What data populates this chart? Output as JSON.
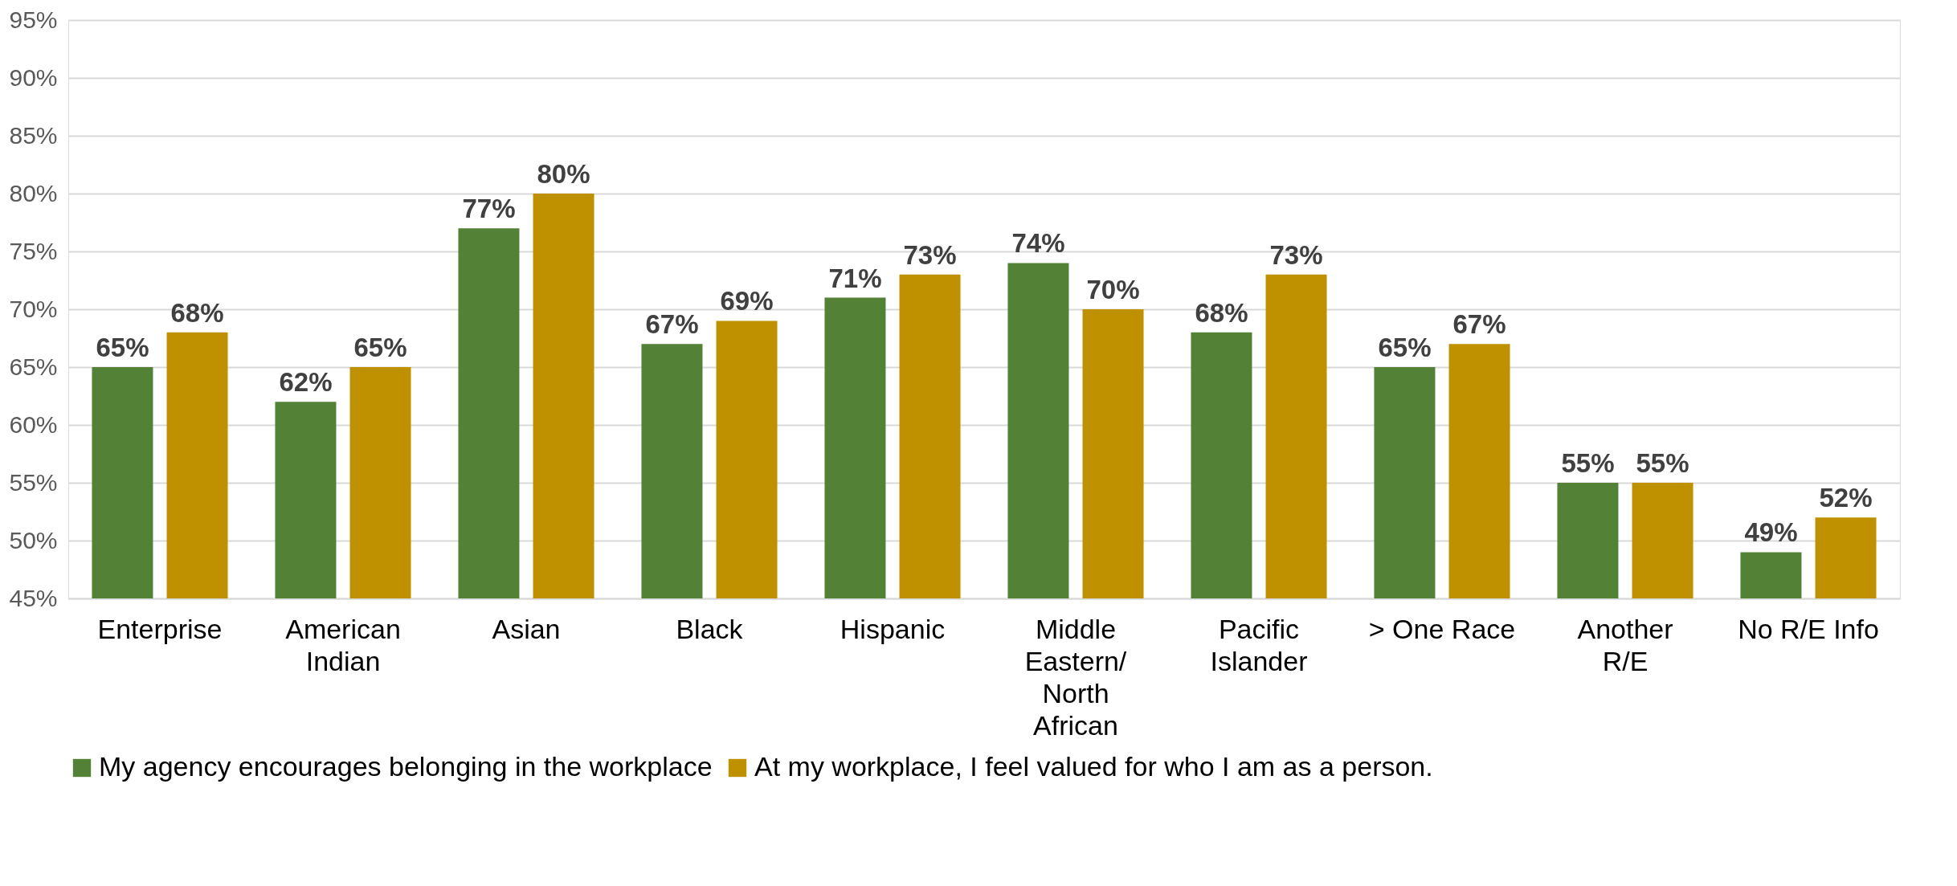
{
  "chart_data": {
    "type": "bar",
    "categories": [
      "Enterprise",
      "American\nIndian",
      "Asian",
      "Black",
      "Hispanic",
      "Middle\nEastern/\nNorth\nAfrican",
      "Pacific\nIslander",
      "> One Race",
      "Another\nR/E",
      "No R/E Info"
    ],
    "series": [
      {
        "name": "My agency encourages belonging in the workplace",
        "color": "#538135",
        "values": [
          65,
          62,
          77,
          67,
          71,
          74,
          68,
          65,
          55,
          49
        ],
        "value_labels": [
          "65%",
          "62%",
          "77%",
          "67%",
          "71%",
          "74%",
          "68%",
          "65%",
          "55%",
          "49%"
        ]
      },
      {
        "name": "At my workplace, I feel valued for who I am as a person.",
        "color": "#bf9000",
        "values": [
          68,
          65,
          80,
          69,
          73,
          70,
          73,
          67,
          55,
          52
        ],
        "value_labels": [
          "68%",
          "65%",
          "80%",
          "69%",
          "73%",
          "70%",
          "73%",
          "67%",
          "55%",
          "52%"
        ]
      }
    ],
    "ylim": [
      45,
      95
    ],
    "yticks": [
      {
        "value": 45,
        "label": "45%"
      },
      {
        "value": 50,
        "label": "50%"
      },
      {
        "value": 55,
        "label": "55%"
      },
      {
        "value": 60,
        "label": "60%"
      },
      {
        "value": 65,
        "label": "65%"
      },
      {
        "value": 70,
        "label": "70%"
      },
      {
        "value": 75,
        "label": "75%"
      },
      {
        "value": 80,
        "label": "80%"
      },
      {
        "value": 85,
        "label": "85%"
      },
      {
        "value": 90,
        "label": "90%"
      },
      {
        "value": 95,
        "label": "95%"
      }
    ],
    "grid": "y",
    "legend": "bottom"
  }
}
